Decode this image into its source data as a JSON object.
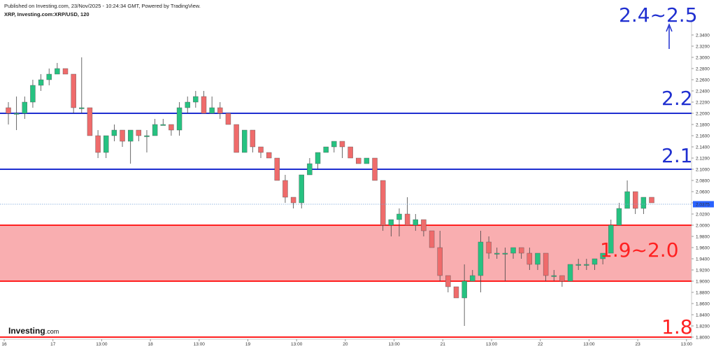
{
  "header": {
    "published": "Published on Investing.com, 23/Nov/2025 - 10:24:34 GMT, Powered by TradingView.",
    "symbol": "XRP, Investing.com:XRP/USD, 120"
  },
  "logo": {
    "text": "Investing",
    "suffix": ".com"
  },
  "colors": {
    "bull": "#26c281",
    "bear": "#ef6b6b",
    "line_blue": "#1f2fd0",
    "line_red": "#ff2020",
    "zone_fill": "#f9aeb0",
    "price_dotted": "#7aa5d8",
    "price_tag": "#2962ff"
  },
  "chart_data": {
    "type": "candlestick",
    "ylim": [
      1.8,
      2.35
    ],
    "y_ticks": [
      "2.3400",
      "2.3200",
      "2.3000",
      "2.2800",
      "2.2600",
      "2.2400",
      "2.2200",
      "2.2000",
      "2.1800",
      "2.1600",
      "2.1400",
      "2.1200",
      "2.1000",
      "2.0800",
      "2.0600",
      "2.0400",
      "2.0200",
      "2.0000",
      "1.9800",
      "1.9600",
      "1.9400",
      "1.9200",
      "1.9000",
      "1.8800",
      "1.8600",
      "1.8400",
      "1.8200",
      "1.8000"
    ],
    "x_ticks": [
      "16",
      "17",
      "13:00",
      "18",
      "13:00",
      "19",
      "13:00",
      "20",
      "13:00",
      "21",
      "13:00",
      "22",
      "13:00",
      "23",
      "13:00"
    ],
    "current_price": {
      "label": "2.0375",
      "value": 2.0375
    },
    "levels": [
      {
        "label": "2.2",
        "value": 2.2,
        "color": "blue"
      },
      {
        "label": "2.1",
        "value": 2.1,
        "color": "blue"
      },
      {
        "label": "1.8",
        "value": 1.8,
        "color": "red"
      }
    ],
    "zone": {
      "label": "1.9~2.0",
      "low": 1.9,
      "high": 2.0
    },
    "target": {
      "label": "2.4~2.5"
    },
    "candles": [
      [
        2.21,
        2.2,
        2.22,
        2.18
      ],
      [
        2.2,
        2.2,
        2.23,
        2.17
      ],
      [
        2.2,
        2.22,
        2.23,
        2.19
      ],
      [
        2.22,
        2.25,
        2.26,
        2.21
      ],
      [
        2.25,
        2.26,
        2.27,
        2.24
      ],
      [
        2.26,
        2.27,
        2.28,
        2.25
      ],
      [
        2.27,
        2.28,
        2.29,
        2.27
      ],
      [
        2.28,
        2.27,
        2.28,
        2.27
      ],
      [
        2.27,
        2.21,
        2.27,
        2.2
      ],
      [
        2.21,
        2.21,
        2.3,
        2.2
      ],
      [
        2.21,
        2.16,
        2.21,
        2.16
      ],
      [
        2.16,
        2.13,
        2.17,
        2.12
      ],
      [
        2.13,
        2.16,
        2.16,
        2.12
      ],
      [
        2.16,
        2.17,
        2.18,
        2.15
      ],
      [
        2.17,
        2.15,
        2.17,
        2.14
      ],
      [
        2.15,
        2.17,
        2.17,
        2.11
      ],
      [
        2.17,
        2.16,
        2.17,
        2.15
      ],
      [
        2.16,
        2.16,
        2.17,
        2.13
      ],
      [
        2.16,
        2.18,
        2.19,
        2.16
      ],
      [
        2.18,
        2.18,
        2.19,
        2.18
      ],
      [
        2.18,
        2.17,
        2.18,
        2.16
      ],
      [
        2.17,
        2.21,
        2.22,
        2.16
      ],
      [
        2.21,
        2.22,
        2.23,
        2.2
      ],
      [
        2.22,
        2.23,
        2.24,
        2.21
      ],
      [
        2.23,
        2.2,
        2.24,
        2.2
      ],
      [
        2.2,
        2.21,
        2.23,
        2.2
      ],
      [
        2.21,
        2.2,
        2.22,
        2.19
      ],
      [
        2.2,
        2.18,
        2.2,
        2.18
      ],
      [
        2.18,
        2.13,
        2.18,
        2.13
      ],
      [
        2.13,
        2.17,
        2.17,
        2.13
      ],
      [
        2.17,
        2.14,
        2.17,
        2.13
      ],
      [
        2.14,
        2.13,
        2.14,
        2.12
      ],
      [
        2.13,
        2.12,
        2.13,
        2.12
      ],
      [
        2.12,
        2.08,
        2.12,
        2.08
      ],
      [
        2.08,
        2.05,
        2.09,
        2.04
      ],
      [
        2.05,
        2.04,
        2.05,
        2.03
      ],
      [
        2.04,
        2.09,
        2.09,
        2.03
      ],
      [
        2.09,
        2.11,
        2.12,
        2.09
      ],
      [
        2.11,
        2.13,
        2.13,
        2.1
      ],
      [
        2.13,
        2.14,
        2.14,
        2.13
      ],
      [
        2.14,
        2.15,
        2.15,
        2.13
      ],
      [
        2.15,
        2.14,
        2.15,
        2.12
      ],
      [
        2.14,
        2.12,
        2.14,
        2.12
      ],
      [
        2.12,
        2.11,
        2.12,
        2.11
      ],
      [
        2.11,
        2.12,
        2.12,
        2.11
      ],
      [
        2.12,
        2.08,
        2.12,
        2.08
      ],
      [
        2.08,
        2.0,
        2.08,
        1.99
      ],
      [
        2.0,
        2.01,
        2.01,
        1.98
      ],
      [
        2.01,
        2.02,
        2.03,
        1.98
      ],
      [
        2.02,
        2.0,
        2.05,
        2.0
      ],
      [
        2.0,
        2.01,
        2.02,
        1.99
      ],
      [
        2.01,
        1.99,
        2.01,
        1.98
      ],
      [
        1.99,
        1.96,
        1.99,
        1.96
      ],
      [
        1.96,
        1.91,
        1.99,
        1.9
      ],
      [
        1.91,
        1.89,
        1.91,
        1.88
      ],
      [
        1.89,
        1.87,
        1.89,
        1.87
      ],
      [
        1.87,
        1.9,
        1.93,
        1.82
      ],
      [
        1.9,
        1.91,
        1.92,
        1.9
      ],
      [
        1.91,
        1.97,
        1.99,
        1.88
      ],
      [
        1.97,
        1.95,
        1.98,
        1.94
      ],
      [
        1.95,
        1.95,
        1.96,
        1.94
      ],
      [
        1.95,
        1.95,
        1.96,
        1.9
      ],
      [
        1.95,
        1.96,
        1.96,
        1.94
      ],
      [
        1.96,
        1.95,
        1.96,
        1.94
      ],
      [
        1.95,
        1.93,
        1.96,
        1.92
      ],
      [
        1.93,
        1.95,
        1.95,
        1.92
      ],
      [
        1.95,
        1.91,
        1.95,
        1.9
      ],
      [
        1.91,
        1.91,
        1.92,
        1.9
      ],
      [
        1.91,
        1.9,
        1.91,
        1.89
      ],
      [
        1.9,
        1.93,
        1.93,
        1.9
      ],
      [
        1.93,
        1.93,
        1.94,
        1.92
      ],
      [
        1.93,
        1.93,
        1.94,
        1.92
      ],
      [
        1.93,
        1.94,
        1.94,
        1.92
      ],
      [
        1.94,
        1.95,
        1.95,
        1.93
      ],
      [
        1.95,
        2.0,
        2.01,
        1.95
      ],
      [
        2.0,
        2.03,
        2.04,
        2.0
      ],
      [
        2.03,
        2.06,
        2.08,
        2.03
      ],
      [
        2.06,
        2.03,
        2.06,
        2.02
      ],
      [
        2.03,
        2.05,
        2.05,
        2.02
      ],
      [
        2.05,
        2.04,
        2.05,
        2.04
      ]
    ]
  }
}
